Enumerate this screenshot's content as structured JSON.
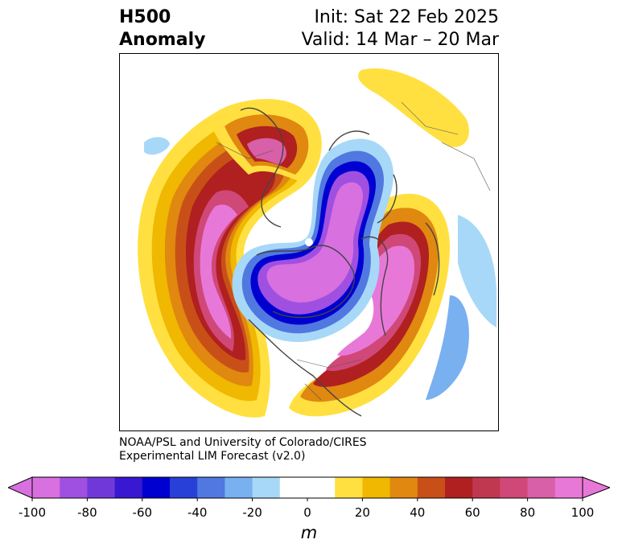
{
  "header": {
    "title_line1": "H500",
    "title_line2": "Anomaly",
    "init": "Init: Sat 22 Feb 2025",
    "valid": "Valid: 14 Mar – 20 Mar"
  },
  "credit": {
    "line1": "NOAA/PSL and University of Colorado/CIRES",
    "line2": "Experimental LIM Forecast (v2.0)"
  },
  "colorbar": {
    "unit": "m",
    "ticks": [
      "-100",
      "-80",
      "-60",
      "-40",
      "-20",
      "0",
      "20",
      "40",
      "60",
      "80",
      "100"
    ],
    "colors": [
      "#d870e0",
      "#a050e0",
      "#7038d8",
      "#3818d0",
      "#0000d0",
      "#2840d8",
      "#5078e0",
      "#78b0f0",
      "#a8d8f8",
      "#ffffff",
      "#ffffff",
      "#ffe040",
      "#f0b800",
      "#e08810",
      "#c85018",
      "#b02020",
      "#c03850",
      "#d04878",
      "#d860a8",
      "#e878d8"
    ],
    "extend": "both"
  },
  "map": {
    "projection": "north polar stereographic",
    "field": "500 hPa geopotential height anomaly"
  }
}
